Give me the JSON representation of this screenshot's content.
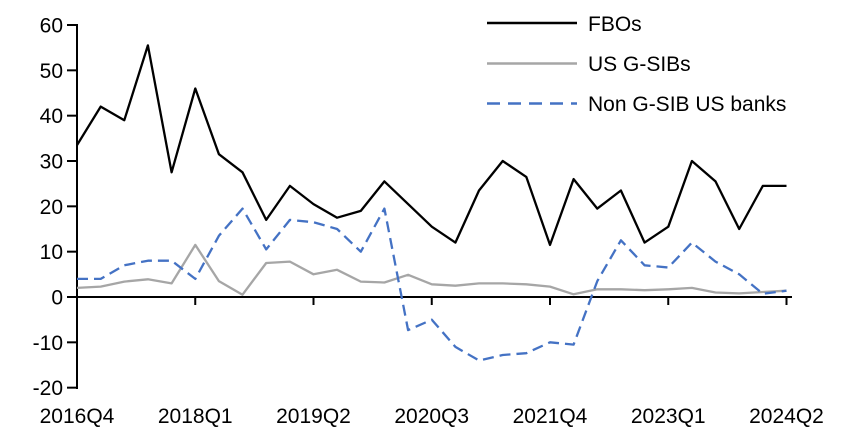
{
  "chart_data": {
    "type": "line",
    "title": "",
    "xlabel": "",
    "ylabel": "",
    "ylim": [
      -20,
      60
    ],
    "grid": false,
    "legend_position": "top-right",
    "y_ticks": [
      60,
      50,
      40,
      30,
      20,
      10,
      0,
      -10,
      -20
    ],
    "x_tick_labels": [
      "2016Q4",
      "2018Q1",
      "2019Q2",
      "2020Q3",
      "2021Q4",
      "2023Q1",
      "2024Q2"
    ],
    "categories": [
      "2016Q4",
      "2017Q1",
      "2017Q2",
      "2017Q3",
      "2017Q4",
      "2018Q1",
      "2018Q2",
      "2018Q3",
      "2018Q4",
      "2019Q1",
      "2019Q2",
      "2019Q3",
      "2019Q4",
      "2020Q1",
      "2020Q2",
      "2020Q3",
      "2020Q4",
      "2021Q1",
      "2021Q2",
      "2021Q3",
      "2021Q4",
      "2022Q1",
      "2022Q2",
      "2022Q3",
      "2022Q4",
      "2023Q1",
      "2023Q2",
      "2023Q3",
      "2023Q4",
      "2024Q1",
      "2024Q2"
    ],
    "series": [
      {
        "name": "FBOs",
        "color": "#000000",
        "style": "solid",
        "values": [
          33.5,
          42,
          39,
          55.5,
          27.5,
          46,
          31.5,
          27.5,
          17,
          24.5,
          20.5,
          17.5,
          19,
          25.5,
          20.5,
          15.5,
          12,
          23.5,
          30,
          26.5,
          11.5,
          26,
          19.5,
          23.5,
          12,
          15.5,
          30,
          25.5,
          15,
          24.5,
          24.5
        ]
      },
      {
        "name": "US G-SIBs",
        "color": "#A6A6A6",
        "style": "solid",
        "values": [
          2,
          2.3,
          3.4,
          3.9,
          3,
          11.5,
          3.5,
          0.5,
          7.5,
          7.8,
          5,
          6,
          3.4,
          3.2,
          4.9,
          2.8,
          2.5,
          3,
          3,
          2.8,
          2.3,
          0.6,
          1.7,
          1.7,
          1.5,
          1.7,
          2,
          1,
          0.8,
          1.1,
          1.4
        ]
      },
      {
        "name": "Non G-SIB US banks",
        "color": "#4472C4",
        "style": "dashed",
        "values": [
          4,
          4,
          7,
          8,
          8,
          4,
          13.5,
          19.5,
          10.5,
          17,
          16.5,
          15,
          10,
          19.5,
          -7.3,
          -5,
          -11,
          -14,
          -12.8,
          -12.4,
          -10,
          -10.5,
          3.5,
          12.5,
          7,
          6.5,
          12,
          7.8,
          5,
          0.7,
          1.4
        ]
      }
    ],
    "legend_dash": "13 8",
    "line_dash": "11 6"
  }
}
